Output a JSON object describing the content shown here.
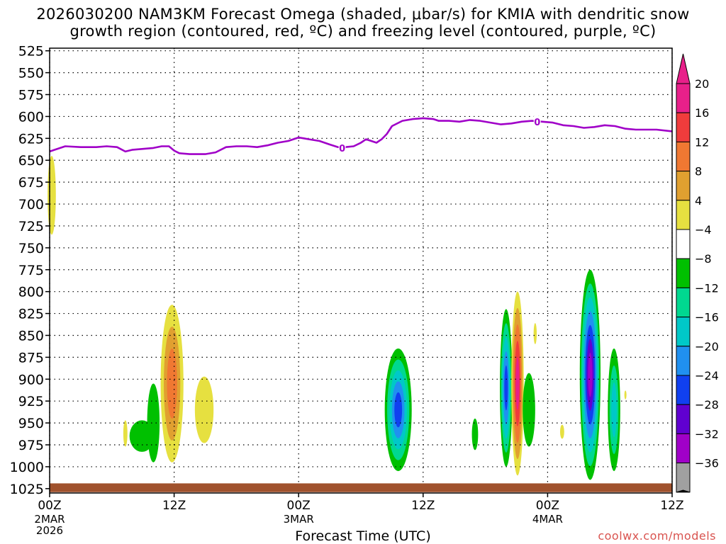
{
  "title_line1": "2026030200 NAM3KM Forecast Omega (shaded, μbar/s) for KMIA with dendritic snow",
  "title_line2": "growth region (contoured, red, ºC) and freezing level (contoured, purple, ºC)",
  "credit": "coolwx.com/models",
  "colors": {
    "freezing_line": "#a000c8",
    "ground": "#a0522d",
    "credit": "#d9534f"
  },
  "chart_data": {
    "type": "heatmap",
    "xlabel": "Forecast Time (UTC)",
    "ylabel": "",
    "x_unit": "hours since 00Z 2 MAR 2026",
    "xlim": [
      0,
      60
    ],
    "ylim": [
      1030,
      522
    ],
    "x_ticks": [
      {
        "hour": 0,
        "label": "00Z",
        "sub1": "2MAR",
        "sub2": "2026"
      },
      {
        "hour": 12,
        "label": "12Z",
        "sub1": "",
        "sub2": ""
      },
      {
        "hour": 24,
        "label": "00Z",
        "sub1": "3MAR",
        "sub2": ""
      },
      {
        "hour": 36,
        "label": "12Z",
        "sub1": "",
        "sub2": ""
      },
      {
        "hour": 48,
        "label": "00Z",
        "sub1": "4MAR",
        "sub2": ""
      },
      {
        "hour": 60,
        "label": "12Z",
        "sub1": "",
        "sub2": ""
      }
    ],
    "y_ticks": [
      525,
      550,
      575,
      600,
      625,
      650,
      675,
      700,
      725,
      750,
      775,
      800,
      825,
      850,
      875,
      900,
      925,
      950,
      975,
      1000,
      1025
    ],
    "grid": true,
    "colorbar": {
      "labels": [
        "20",
        "16",
        "12",
        "8",
        "4",
        "−4",
        "−8",
        "−12",
        "−16",
        "−20",
        "−24",
        "−28",
        "−32",
        "−36"
      ],
      "top_color": "#e8208a",
      "bottom_color": "#000000",
      "segments": [
        "#e8208a",
        "#f03c3c",
        "#f07832",
        "#e0a030",
        "#e6e040",
        "#ffffff",
        "#00c000",
        "#00d890",
        "#00c8c8",
        "#2090f0",
        "#1040f0",
        "#6000d0",
        "#a000c8",
        "#a0a0a0"
      ]
    },
    "freezing_level": {
      "label": "0",
      "label_points": [
        {
          "hour": 28.2,
          "hpa": 636
        },
        {
          "hour": 47.0,
          "hpa": 606
        }
      ],
      "points": [
        [
          0,
          640
        ],
        [
          0.5,
          638
        ],
        [
          1.5,
          634
        ],
        [
          3,
          635
        ],
        [
          4.5,
          635
        ],
        [
          5.5,
          634
        ],
        [
          6.5,
          635
        ],
        [
          7.3,
          640
        ],
        [
          8,
          638
        ],
        [
          9,
          637
        ],
        [
          10,
          636
        ],
        [
          10.8,
          634
        ],
        [
          11.5,
          634
        ],
        [
          12,
          639
        ],
        [
          12.5,
          642
        ],
        [
          13.5,
          643
        ],
        [
          15,
          643
        ],
        [
          16,
          641
        ],
        [
          17,
          635
        ],
        [
          18,
          634
        ],
        [
          19,
          634
        ],
        [
          20,
          635
        ],
        [
          21,
          633
        ],
        [
          22,
          630
        ],
        [
          23,
          628
        ],
        [
          24,
          624
        ],
        [
          24.5,
          625
        ],
        [
          25,
          626
        ],
        [
          26,
          628
        ],
        [
          27,
          632
        ],
        [
          27.8,
          635
        ],
        [
          28.5,
          635
        ],
        [
          29.3,
          634
        ],
        [
          30,
          630
        ],
        [
          30.5,
          626
        ],
        [
          31,
          628
        ],
        [
          31.5,
          630
        ],
        [
          32,
          626
        ],
        [
          32.5,
          620
        ],
        [
          33,
          611
        ],
        [
          34,
          605
        ],
        [
          35,
          603
        ],
        [
          36,
          602
        ],
        [
          37,
          603
        ],
        [
          37.5,
          605
        ],
        [
          38.5,
          605
        ],
        [
          39.5,
          606
        ],
        [
          40.5,
          604
        ],
        [
          41.5,
          605
        ],
        [
          42.5,
          607
        ],
        [
          43.5,
          609
        ],
        [
          44.5,
          608
        ],
        [
          45.5,
          606
        ],
        [
          46.5,
          605
        ],
        [
          47.5,
          606
        ],
        [
          48.5,
          607
        ],
        [
          49.5,
          610
        ],
        [
          50.5,
          611
        ],
        [
          51.5,
          613
        ],
        [
          52.5,
          612
        ],
        [
          53.5,
          610
        ],
        [
          54.5,
          611
        ],
        [
          55.5,
          614
        ],
        [
          56.5,
          615
        ],
        [
          57.5,
          615
        ],
        [
          58.5,
          615
        ],
        [
          60,
          617
        ]
      ]
    },
    "omega_features": [
      {
        "hour": 0.2,
        "hpa": 690,
        "w_h": 0.4,
        "h_hpa": 45,
        "values": [
          4
        ]
      },
      {
        "hour": 11.8,
        "hpa": 905,
        "w_h": 1.1,
        "h_hpa": 90,
        "values": [
          4,
          8,
          12
        ]
      },
      {
        "hour": 14.9,
        "hpa": 935,
        "w_h": 0.9,
        "h_hpa": 38,
        "values": [
          4
        ]
      },
      {
        "hour": 10.0,
        "hpa": 950,
        "w_h": 0.6,
        "h_hpa": 45,
        "values": [
          -4
        ]
      },
      {
        "hour": 8.9,
        "hpa": 965,
        "w_h": 1.2,
        "h_hpa": 18,
        "values": [
          -4
        ]
      },
      {
        "hour": 7.3,
        "hpa": 962,
        "w_h": 0.2,
        "h_hpa": 15,
        "values": [
          4
        ]
      },
      {
        "hour": 33.6,
        "hpa": 935,
        "w_h": 1.3,
        "h_hpa": 70,
        "values": [
          -4,
          -8,
          -12,
          -16,
          -20
        ]
      },
      {
        "hour": 41.0,
        "hpa": 963,
        "w_h": 0.3,
        "h_hpa": 18,
        "values": [
          -4
        ]
      },
      {
        "hour": 44.0,
        "hpa": 910,
        "w_h": 0.6,
        "h_hpa": 90,
        "values": [
          -4,
          -8,
          -12,
          -16,
          -20
        ]
      },
      {
        "hour": 45.1,
        "hpa": 905,
        "w_h": 0.6,
        "h_hpa": 105,
        "values": [
          4,
          8,
          12,
          16,
          20
        ]
      },
      {
        "hour": 46.2,
        "hpa": 935,
        "w_h": 0.6,
        "h_hpa": 42,
        "values": [
          -4
        ]
      },
      {
        "hour": 46.8,
        "hpa": 848,
        "w_h": 0.15,
        "h_hpa": 12,
        "values": [
          4
        ]
      },
      {
        "hour": 49.4,
        "hpa": 960,
        "w_h": 0.2,
        "h_hpa": 8,
        "values": [
          4
        ]
      },
      {
        "hour": 52.1,
        "hpa": 895,
        "w_h": 1.0,
        "h_hpa": 120,
        "values": [
          -4,
          -8,
          -12,
          -16,
          -20,
          -24,
          -28
        ]
      },
      {
        "hour": 54.4,
        "hpa": 935,
        "w_h": 0.6,
        "h_hpa": 70,
        "values": [
          -4,
          -8,
          -12
        ]
      },
      {
        "hour": 55.5,
        "hpa": 918,
        "w_h": 0.1,
        "h_hpa": 5,
        "values": [
          4
        ]
      }
    ]
  }
}
